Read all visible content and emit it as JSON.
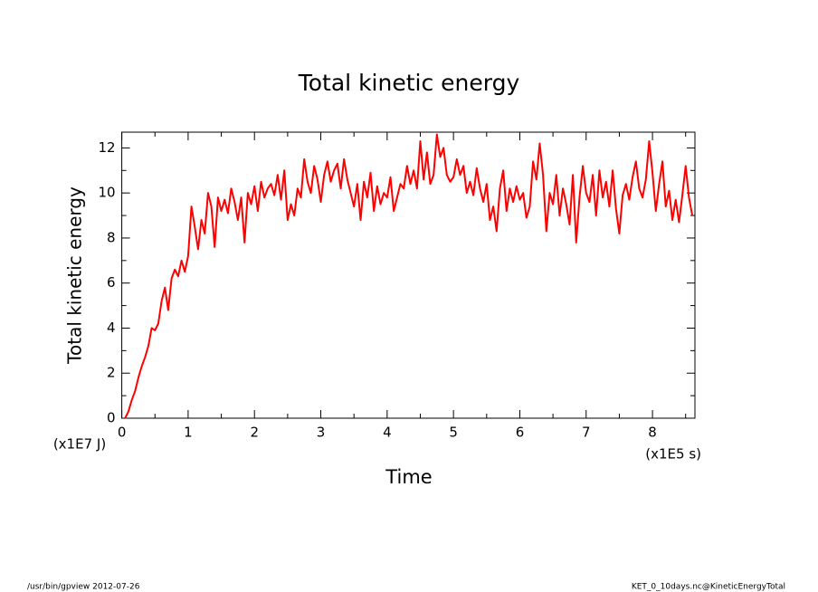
{
  "chart_data": {
    "type": "line",
    "title": "Total kinetic energy",
    "ylabel": "Total kinetic energy",
    "xlabel": "Time",
    "yunit": "(x1E7 J)",
    "xunit": "(x1E5 s)",
    "footer_left": "/usr/bin/gpview  2012-07-26",
    "footer_right": "KET_0_10days.nc@KineticEnergyTotal",
    "xlim": [
      0,
      8.64
    ],
    "ylim": [
      0,
      12.7
    ],
    "xticks": [
      0,
      1,
      2,
      3,
      4,
      5,
      6,
      7,
      8
    ],
    "yticks": [
      0,
      2,
      4,
      6,
      8,
      10,
      12
    ],
    "xminorticks": [
      0.5,
      1.5,
      2.5,
      3.5,
      4.5,
      5.5,
      6.5,
      7.5,
      8.5
    ],
    "yminorticks": [
      1,
      3,
      5,
      7,
      9,
      11
    ],
    "x": [
      0.05,
      0.1,
      0.15,
      0.2,
      0.25,
      0.3,
      0.35,
      0.4,
      0.45,
      0.5,
      0.55,
      0.6,
      0.65,
      0.7,
      0.75,
      0.8,
      0.85,
      0.9,
      0.95,
      1.0,
      1.05,
      1.1,
      1.15,
      1.2,
      1.25,
      1.3,
      1.35,
      1.4,
      1.45,
      1.5,
      1.55,
      1.6,
      1.65,
      1.7,
      1.75,
      1.8,
      1.85,
      1.9,
      1.95,
      2.0,
      2.05,
      2.1,
      2.15,
      2.2,
      2.25,
      2.3,
      2.35,
      2.4,
      2.45,
      2.5,
      2.55,
      2.6,
      2.65,
      2.7,
      2.75,
      2.8,
      2.85,
      2.9,
      2.95,
      3.0,
      3.05,
      3.1,
      3.15,
      3.2,
      3.25,
      3.3,
      3.35,
      3.4,
      3.45,
      3.5,
      3.55,
      3.6,
      3.65,
      3.7,
      3.75,
      3.8,
      3.85,
      3.9,
      3.95,
      4.0,
      4.05,
      4.1,
      4.15,
      4.2,
      4.25,
      4.3,
      4.35,
      4.4,
      4.45,
      4.5,
      4.55,
      4.6,
      4.65,
      4.7,
      4.75,
      4.8,
      4.85,
      4.9,
      4.95,
      5.0,
      5.05,
      5.1,
      5.15,
      5.2,
      5.25,
      5.3,
      5.35,
      5.4,
      5.45,
      5.5,
      5.55,
      5.6,
      5.65,
      5.7,
      5.75,
      5.8,
      5.85,
      5.9,
      5.95,
      6.0,
      6.05,
      6.1,
      6.15,
      6.2,
      6.25,
      6.3,
      6.35,
      6.4,
      6.45,
      6.5,
      6.55,
      6.6,
      6.65,
      6.7,
      6.75,
      6.8,
      6.85,
      6.9,
      6.95,
      7.0,
      7.05,
      7.1,
      7.15,
      7.2,
      7.25,
      7.3,
      7.35,
      7.4,
      7.45,
      7.5,
      7.55,
      7.6,
      7.65,
      7.7,
      7.75,
      7.8,
      7.85,
      7.9,
      7.95,
      8.0,
      8.05,
      8.1,
      8.15,
      8.2,
      8.25,
      8.3,
      8.35,
      8.4,
      8.45,
      8.5,
      8.55,
      8.6
    ],
    "series": [
      {
        "name": "Total kinetic energy",
        "color": "#ff0000",
        "values": [
          0,
          0.3,
          0.8,
          1.2,
          1.8,
          2.3,
          2.7,
          3.2,
          4.0,
          3.9,
          4.2,
          5.2,
          5.8,
          4.8,
          6.2,
          6.6,
          6.3,
          7.0,
          6.5,
          7.2,
          9.4,
          8.5,
          7.5,
          8.8,
          8.2,
          10.0,
          9.4,
          7.6,
          9.8,
          9.2,
          9.7,
          9.1,
          10.2,
          9.6,
          8.8,
          9.8,
          7.8,
          10.0,
          9.5,
          10.3,
          9.2,
          10.5,
          9.8,
          10.2,
          10.4,
          9.9,
          10.8,
          9.7,
          11.0,
          8.8,
          9.5,
          9.0,
          10.2,
          9.8,
          11.5,
          10.5,
          10.0,
          11.2,
          10.6,
          9.6,
          10.8,
          11.4,
          10.5,
          11.0,
          11.3,
          10.2,
          11.5,
          10.6,
          10.0,
          9.4,
          10.4,
          8.8,
          10.5,
          9.8,
          10.9,
          9.2,
          10.3,
          9.5,
          10.0,
          9.8,
          10.7,
          9.2,
          9.8,
          10.4,
          10.2,
          11.2,
          10.4,
          11.0,
          10.2,
          12.3,
          10.6,
          11.8,
          10.4,
          10.8,
          12.6,
          11.6,
          12.0,
          10.8,
          10.5,
          10.7,
          11.5,
          10.8,
          11.2,
          10.0,
          10.5,
          9.9,
          11.1,
          10.2,
          9.6,
          10.4,
          8.8,
          9.4,
          8.3,
          10.2,
          11.0,
          9.2,
          10.2,
          9.6,
          10.3,
          9.7,
          10.0,
          8.9,
          9.4,
          11.4,
          10.6,
          12.2,
          10.8,
          8.3,
          10.0,
          9.5,
          10.8,
          9.0,
          10.2,
          9.5,
          8.6,
          10.8,
          7.8,
          9.8,
          11.2,
          10.0,
          9.6,
          10.8,
          9.0,
          11.0,
          9.8,
          10.5,
          9.4,
          11.0,
          9.3,
          8.2,
          9.9,
          10.4,
          9.7,
          10.7,
          11.4,
          10.2,
          9.8,
          10.6,
          12.3,
          10.9,
          9.2,
          10.4,
          11.4,
          9.4,
          10.1,
          8.8,
          9.7,
          8.7,
          9.9,
          11.2,
          9.8,
          9.0
        ]
      }
    ]
  }
}
